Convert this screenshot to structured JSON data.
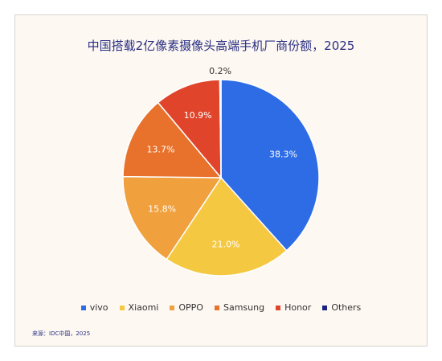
{
  "chart_data": {
    "type": "pie",
    "title": "中国搭载2亿像素摄像头高端手机厂商份额，2025",
    "slices": [
      {
        "name": "vivo",
        "value": 38.3,
        "label": "38.3%",
        "color": "#2e6ce6"
      },
      {
        "name": "Xiaomi",
        "value": 21.0,
        "label": "21.0%",
        "color": "#f5c842"
      },
      {
        "name": "OPPO",
        "value": 15.8,
        "label": "15.8%",
        "color": "#f0a03c"
      },
      {
        "name": "Samsung",
        "value": 13.7,
        "label": "13.7%",
        "color": "#e8712b"
      },
      {
        "name": "Honor",
        "value": 10.9,
        "label": "10.9%",
        "color": "#e0442a"
      },
      {
        "name": "Others",
        "value": 0.2,
        "label": "0.2%",
        "color": "#1a237e"
      }
    ],
    "legend_position": "bottom"
  },
  "source": "来源：IDC中国，2025"
}
